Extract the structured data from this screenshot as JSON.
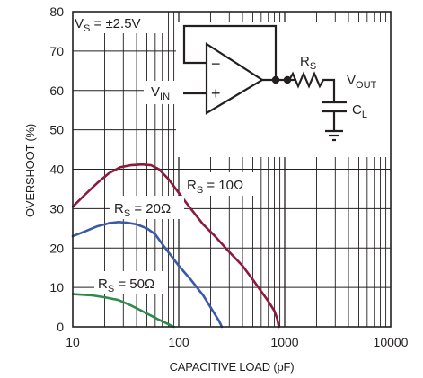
{
  "chart_data": {
    "type": "line",
    "title": "",
    "xlabel": "CAPACITIVE LOAD (pF)",
    "ylabel": "OVERSHOOT (%)",
    "xscale": "log",
    "xlim": [
      10,
      10000
    ],
    "ylim": [
      0,
      80
    ],
    "xticks": [
      "10",
      "100",
      "1000",
      "10000"
    ],
    "yticks": [
      "0",
      "10",
      "20",
      "30",
      "40",
      "50",
      "60",
      "70",
      "80"
    ],
    "grid": true,
    "series": [
      {
        "name": "RS = 10Ω",
        "color": "#8b1a3c",
        "x": [
          10,
          13,
          17,
          22,
          28,
          35,
          45,
          55,
          65,
          80,
          100,
          130,
          170,
          220,
          300,
          400,
          500,
          600,
          700,
          800,
          850,
          880
        ],
        "y": [
          30.5,
          33.5,
          36.5,
          39,
          40.5,
          41,
          41.2,
          41,
          40,
          37.5,
          34,
          30,
          26,
          23,
          19,
          15.5,
          12,
          9,
          6.5,
          4,
          2,
          0
        ]
      },
      {
        "name": "RS = 20Ω",
        "color": "#3a5aa8",
        "x": [
          10,
          13,
          17,
          22,
          27,
          33,
          40,
          50,
          60,
          70,
          85,
          100,
          130,
          170,
          210,
          240,
          255
        ],
        "y": [
          23,
          24.2,
          25.5,
          26.3,
          26.6,
          26.4,
          26,
          25,
          23.5,
          21,
          18,
          15.5,
          12,
          8,
          4,
          1.5,
          0
        ]
      },
      {
        "name": "RS = 50Ω",
        "color": "#2e8b4a",
        "x": [
          10,
          15,
          20,
          27,
          35,
          45,
          55,
          65,
          75,
          85,
          90
        ],
        "y": [
          8.3,
          8,
          7.5,
          6.8,
          5.5,
          4,
          2.8,
          1.8,
          1,
          0.3,
          0
        ]
      }
    ],
    "labels": {
      "rs10": {
        "pre": "R",
        "sub": "S",
        "post": " = 10Ω"
      },
      "rs20": {
        "pre": "R",
        "sub": "S",
        "post": " = 20Ω"
      },
      "rs50": {
        "pre": "R",
        "sub": "S",
        "post": " = 50Ω"
      }
    },
    "inset": {
      "supply": {
        "pre": "V",
        "sub": "S",
        "post": " = ±2.5V"
      },
      "vin": {
        "pre": "V",
        "sub": "IN"
      },
      "rs": {
        "pre": "R",
        "sub": "S"
      },
      "vout": {
        "pre": "V",
        "sub": "OUT"
      },
      "cl": {
        "pre": "C",
        "sub": "L"
      },
      "minus": "−",
      "plus": "+"
    }
  }
}
